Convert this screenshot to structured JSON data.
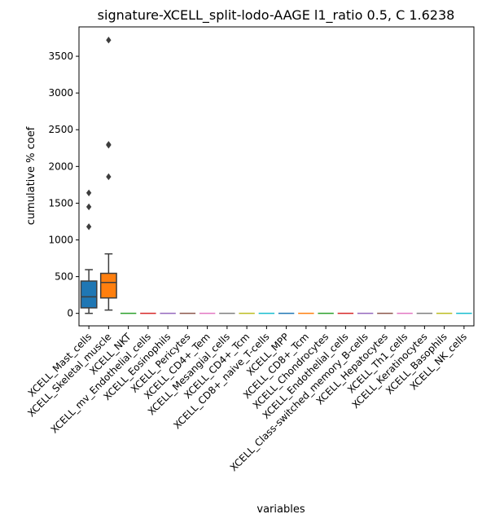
{
  "chart_data": {
    "type": "box",
    "title": "signature-XCELL_split-lodo-AAGE l1_ratio 0.5, C 1.6238",
    "xlabel": "variables",
    "ylabel": "cumulative % coef",
    "ylim": [
      -170,
      3900
    ],
    "yticks": [
      0,
      500,
      1000,
      1500,
      2000,
      2500,
      3000,
      3500
    ],
    "grid": false,
    "categories": [
      "XCELL_Mast_cells",
      "XCELL_Skeletal_muscle",
      "XCELL_NKT",
      "XCELL_mv_Endothelial_cells",
      "XCELL_Eosinophils",
      "XCELL_Pericytes",
      "XCELL_CD4+_Tem",
      "XCELL_Mesangial_cells",
      "XCELL_CD4+_Tcm",
      "XCELL_CD8+_naive_T-cells",
      "XCELL_MPP",
      "XCELL_CD8+_Tcm",
      "XCELL_Chondrocytes",
      "XCELL_Endothelial_cells",
      "XCELL_Class-switched_memory_B-cells",
      "XCELL_Hepatocytes",
      "XCELL_Th1_cells",
      "XCELL_Keratinocytes",
      "XCELL_Basophils",
      "XCELL_NK_cells"
    ],
    "boxes": [
      {
        "q1": 75,
        "median": 225,
        "q3": 440,
        "whisker_low": 0,
        "whisker_high": 595,
        "outliers": [
          1180,
          1450,
          1640
        ],
        "color": "#1f77b4"
      },
      {
        "q1": 210,
        "median": 420,
        "q3": 545,
        "whisker_low": 45,
        "whisker_high": 810,
        "outliers": [
          1860,
          2290,
          2300,
          3720
        ],
        "color": "#ff7f0e"
      },
      {
        "q1": 0,
        "median": 0,
        "q3": 5,
        "whisker_low": 0,
        "whisker_high": 8,
        "outliers": [],
        "color": "#2ca02c"
      },
      {
        "q1": 0,
        "median": 0,
        "q3": 5,
        "whisker_low": 0,
        "whisker_high": 8,
        "outliers": [],
        "color": "#d62728"
      },
      {
        "q1": 0,
        "median": 0,
        "q3": 5,
        "whisker_low": 0,
        "whisker_high": 8,
        "outliers": [],
        "color": "#9467bd"
      },
      {
        "q1": 0,
        "median": 0,
        "q3": 5,
        "whisker_low": 0,
        "whisker_high": 8,
        "outliers": [],
        "color": "#8c564b"
      },
      {
        "q1": 0,
        "median": 0,
        "q3": 5,
        "whisker_low": 0,
        "whisker_high": 8,
        "outliers": [],
        "color": "#e377c2"
      },
      {
        "q1": 0,
        "median": 0,
        "q3": 5,
        "whisker_low": 0,
        "whisker_high": 8,
        "outliers": [],
        "color": "#7f7f7f"
      },
      {
        "q1": 0,
        "median": 0,
        "q3": 5,
        "whisker_low": 0,
        "whisker_high": 8,
        "outliers": [],
        "color": "#bcbd22"
      },
      {
        "q1": 0,
        "median": 0,
        "q3": 5,
        "whisker_low": 0,
        "whisker_high": 8,
        "outliers": [],
        "color": "#17becf"
      },
      {
        "q1": 0,
        "median": 0,
        "q3": 5,
        "whisker_low": 0,
        "whisker_high": 8,
        "outliers": [],
        "color": "#1f77b4"
      },
      {
        "q1": 0,
        "median": 0,
        "q3": 5,
        "whisker_low": 0,
        "whisker_high": 8,
        "outliers": [],
        "color": "#ff7f0e"
      },
      {
        "q1": 0,
        "median": 0,
        "q3": 5,
        "whisker_low": 0,
        "whisker_high": 8,
        "outliers": [],
        "color": "#2ca02c"
      },
      {
        "q1": 0,
        "median": 0,
        "q3": 5,
        "whisker_low": 0,
        "whisker_high": 8,
        "outliers": [],
        "color": "#d62728"
      },
      {
        "q1": 0,
        "median": 0,
        "q3": 5,
        "whisker_low": 0,
        "whisker_high": 8,
        "outliers": [],
        "color": "#9467bd"
      },
      {
        "q1": 0,
        "median": 0,
        "q3": 5,
        "whisker_low": 0,
        "whisker_high": 8,
        "outliers": [],
        "color": "#8c564b"
      },
      {
        "q1": 0,
        "median": 0,
        "q3": 5,
        "whisker_low": 0,
        "whisker_high": 8,
        "outliers": [],
        "color": "#e377c2"
      },
      {
        "q1": 0,
        "median": 0,
        "q3": 5,
        "whisker_low": 0,
        "whisker_high": 8,
        "outliers": [],
        "color": "#7f7f7f"
      },
      {
        "q1": 0,
        "median": 0,
        "q3": 5,
        "whisker_low": 0,
        "whisker_high": 8,
        "outliers": [],
        "color": "#bcbd22"
      },
      {
        "q1": 0,
        "median": 0,
        "q3": 5,
        "whisker_low": 0,
        "whisker_high": 8,
        "outliers": [],
        "color": "#17becf"
      }
    ]
  }
}
